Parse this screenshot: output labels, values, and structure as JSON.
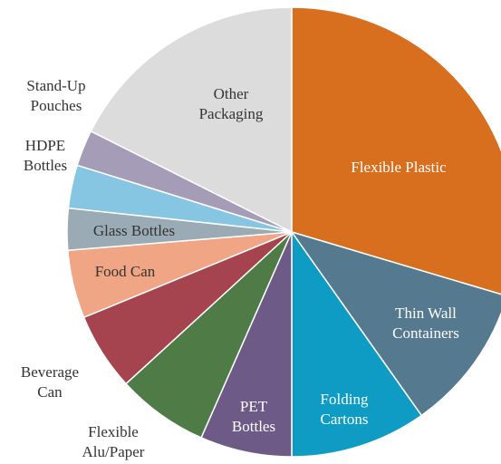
{
  "chart_data": {
    "type": "pie",
    "categories": [
      "Flexible Plastic",
      "Thin Wall Containers",
      "Folding Cartons",
      "PET Bottles",
      "Flexible Alu/Paper",
      "Beverage Can",
      "Food Can",
      "Glass Bottles",
      "HDPE Bottles",
      "Stand-Up Pouches",
      "Other Packaging"
    ],
    "values": [
      29.6,
      10.6,
      9.8,
      6.6,
      6.6,
      5.6,
      4.9,
      3.0,
      3.1,
      2.6,
      17.6
    ],
    "colors": [
      "#d86f1e",
      "#557a8f",
      "#0e9cc4",
      "#6e5a86",
      "#4e7b46",
      "#a5444e",
      "#f0a584",
      "#9aabb5",
      "#86c6e3",
      "#a59cb8",
      "#dcdcdc"
    ]
  }
}
